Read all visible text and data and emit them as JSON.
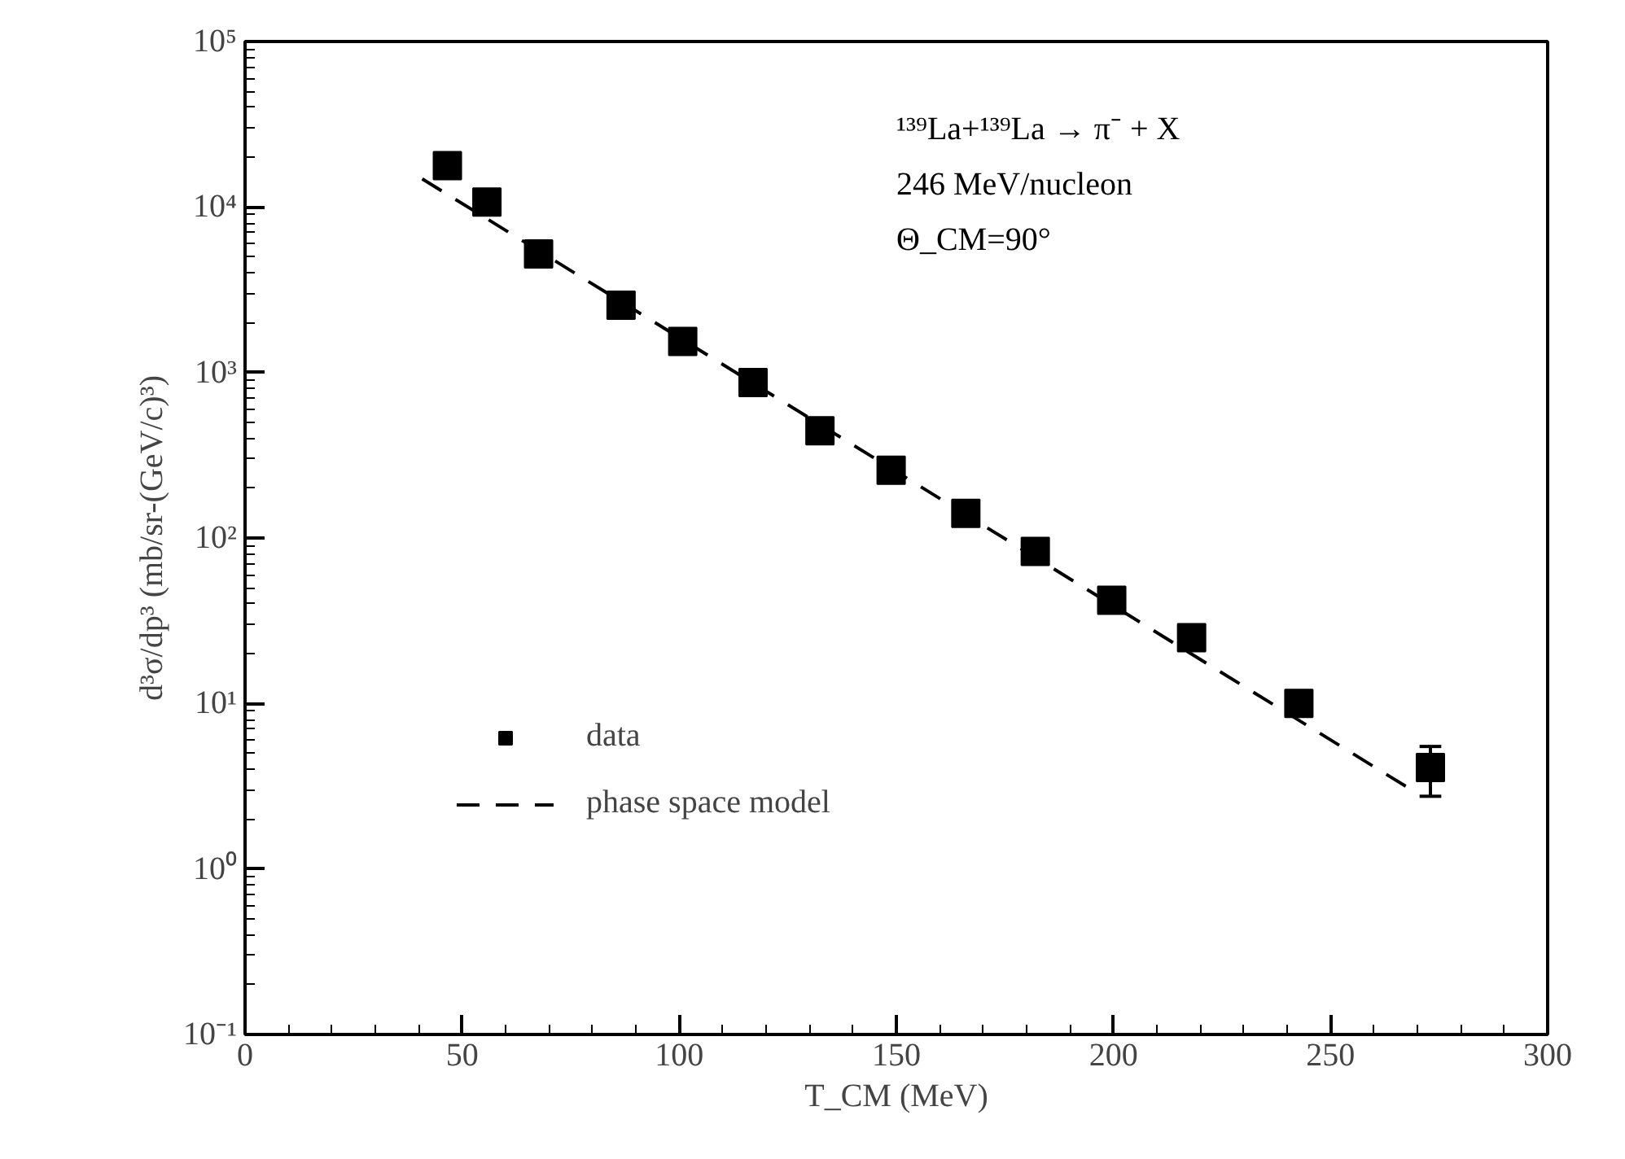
{
  "chart_data": {
    "type": "scatter",
    "xlabel": "T_CM (MeV)",
    "ylabel": "d³σ/dp³ (mb/sr-(GeV/c)³)",
    "annotations": [
      "¹³⁹La+¹³⁹La → π⁻ + X",
      "246 MeV/nucleon",
      "Θ_CM=90°"
    ],
    "log": "y",
    "grid": false,
    "legend": "bottom left",
    "xlim": [
      0,
      300
    ],
    "xticks": [
      0,
      50,
      100,
      150,
      200,
      250,
      300
    ],
    "ylim": [
      0.1,
      100000
    ],
    "yticks": [
      {
        "value": 0.1,
        "label": "10⁻¹"
      },
      {
        "value": 1,
        "label": "10⁰"
      },
      {
        "value": 10,
        "label": "10¹"
      },
      {
        "value": 100,
        "label": "10²"
      },
      {
        "value": 1000,
        "label": "10³"
      },
      {
        "value": 10000,
        "label": "10⁴"
      },
      {
        "value": 100000,
        "label": "10⁵"
      }
    ],
    "series": [
      {
        "name": "data",
        "marker": "square",
        "color": "#000000",
        "x": [
          46.6,
          55.7,
          67.6,
          86.6,
          100.8,
          117,
          132.4,
          148.8,
          166,
          182,
          199.6,
          218,
          242.7,
          273
        ],
        "values": [
          17800,
          10700,
          5200,
          2550,
          1540,
          870,
          445,
          257,
          141,
          83,
          42,
          25,
          10,
          4.1
        ],
        "errors": [
          null,
          null,
          null,
          null,
          null,
          null,
          null,
          null,
          null,
          null,
          null,
          null,
          null,
          [
            2.75,
            5.5
          ]
        ]
      },
      {
        "name": "phase space model",
        "type": "line",
        "line_style": "dashed",
        "color": "#000000",
        "x": [
          40.8,
          268.7
        ],
        "values": [
          14800,
          3.0
        ]
      }
    ]
  }
}
